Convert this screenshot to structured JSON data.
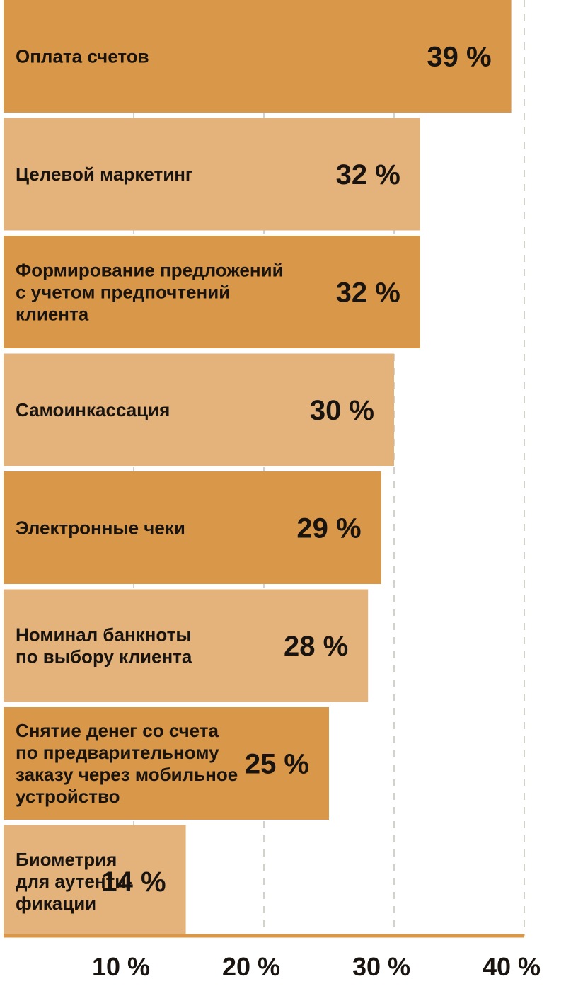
{
  "chart_data": {
    "type": "bar",
    "orientation": "horizontal",
    "categories": [
      "Оплата счетов",
      "Целевой маркетинг",
      "Формирование предложений с учетом предпочтений клиента",
      "Самоинкассация",
      "Электронные чеки",
      "Номинал банкноты по выбору клиента",
      "Снятие денег со счета по предварительному заказу через мобильное устройство",
      "Биометрия для аутенти- фикации"
    ],
    "category_lines": [
      [
        "Оплата счетов"
      ],
      [
        "Целевой маркетинг"
      ],
      [
        "Формирование предложений",
        "с учетом предпочтений",
        "клиента"
      ],
      [
        "Самоинкассация"
      ],
      [
        "Электронные чеки"
      ],
      [
        "Номинал банкноты",
        "по выбору клиента"
      ],
      [
        "Снятие денег со счета",
        "по предварительному",
        "заказу через мобильное",
        "устройство"
      ],
      [
        "Биометрия",
        "для аутенти-",
        "фикации"
      ]
    ],
    "values": [
      39,
      32,
      32,
      30,
      29,
      28,
      25,
      14
    ],
    "value_labels": [
      "39 %",
      "32 %",
      "32 %",
      "30 %",
      "29 %",
      "28 %",
      "25 %",
      "14 %"
    ],
    "xticks": [
      10,
      20,
      30,
      40
    ],
    "xtick_labels": [
      "10 %",
      "20 %",
      "30 %",
      "40 %"
    ],
    "xlim": [
      0,
      40
    ],
    "grid": true,
    "colors": {
      "dark_bar": "#d9974a",
      "light_bar": "#e4b37c",
      "text": "#1a1410",
      "grid": "#b8b0a6"
    }
  }
}
